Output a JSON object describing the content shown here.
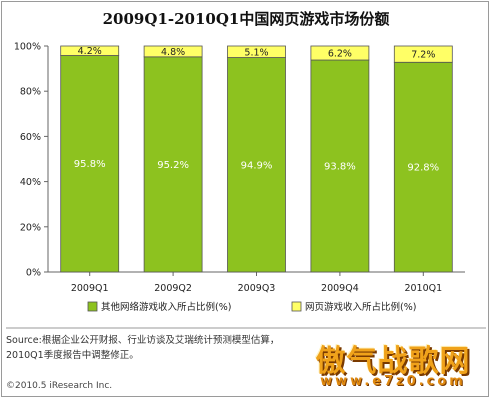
{
  "chart_data": {
    "type": "bar",
    "stacked": true,
    "percent": true,
    "title": "2009Q1-2010Q1中国网页游戏市场份额",
    "categories": [
      "2009Q1",
      "2009Q2",
      "2009Q3",
      "2009Q4",
      "2010Q1"
    ],
    "series": [
      {
        "name": "其他网络游戏收入所占比例(%)",
        "values": [
          95.8,
          95.2,
          94.9,
          93.8,
          92.8
        ],
        "labels": [
          "95.8%",
          "95.2%",
          "94.9%",
          "93.8%",
          "92.8%"
        ],
        "color": "#8dc21f"
      },
      {
        "name": "网页游戏收入所占比例(%)",
        "values": [
          4.2,
          4.8,
          5.1,
          6.2,
          7.2
        ],
        "labels": [
          "4.2%",
          "4.8%",
          "5.1%",
          "6.2%",
          "7.2%"
        ],
        "color": "#ffff66"
      }
    ],
    "yticks": [
      "0%",
      "20%",
      "40%",
      "60%",
      "80%",
      "100%"
    ],
    "ylim": [
      0,
      100
    ],
    "legend": "bottom",
    "grid": false
  },
  "footer": {
    "source": "Source:根据企业公开财报、行业访谈及艾瑞统计预测模型估算，2010Q1季度报告中调整修正。",
    "copyright": "©2010.5 iResearch Inc."
  },
  "watermark": {
    "title": "傲气战歌网",
    "url": "www.e7z0.com"
  },
  "colors": {
    "bar_stroke": "#555555",
    "axis": "#666666",
    "text": "#222222"
  }
}
